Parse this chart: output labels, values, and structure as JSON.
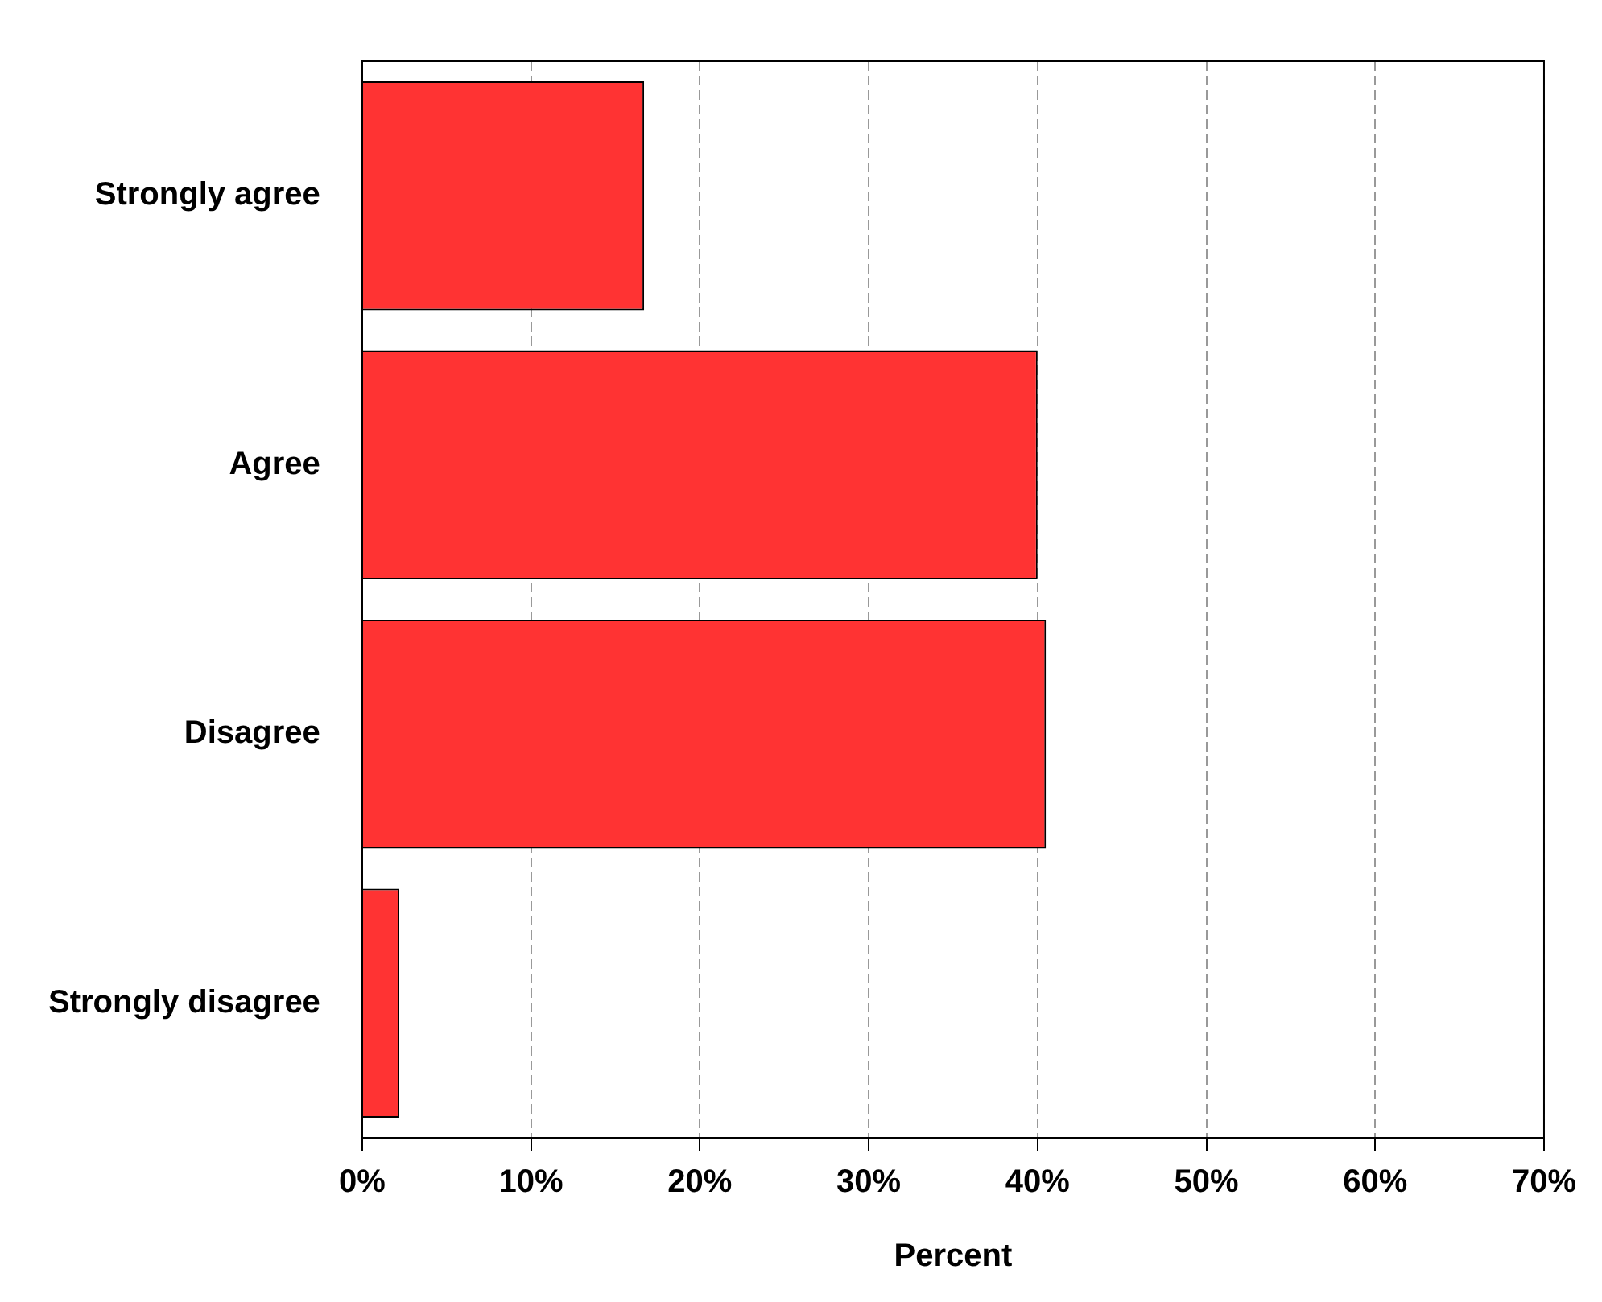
{
  "chart_data": {
    "type": "bar",
    "orientation": "horizontal",
    "xlabel": "Percent",
    "categories": [
      "Strongly agree",
      "Agree",
      "Disagree",
      "Strongly disagree"
    ],
    "values": [
      16.7,
      40.0,
      40.5,
      2.2
    ],
    "color": "#ff3333",
    "xlim": [
      0,
      70
    ],
    "xticks": [
      {
        "value": 0,
        "label": "0%"
      },
      {
        "value": 10,
        "label": "10%"
      },
      {
        "value": 20,
        "label": "20%"
      },
      {
        "value": 30,
        "label": "30%"
      },
      {
        "value": 40,
        "label": "40%"
      },
      {
        "value": 50,
        "label": "50%"
      },
      {
        "value": 60,
        "label": "60%"
      },
      {
        "value": 70,
        "label": "70%"
      }
    ],
    "grid": "x",
    "legend": false
  }
}
